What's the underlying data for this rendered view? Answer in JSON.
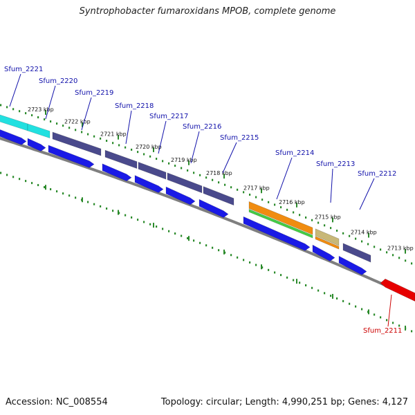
{
  "title": "Syntrophobacter fumaroxidans MPOB, complete genome",
  "footer": {
    "accession": "Accession: NC_008554",
    "summary": "Topology: circular; Length: 4,990,251 bp; Genes: 4,127"
  },
  "colors": {
    "backbone": "#7f7f7f",
    "cds_forward": "#1a1ae6",
    "cds_purple": "#4a4a8c",
    "cds_cyan": "#22e0e0",
    "cds_orange": "#f08c10",
    "cds_green": "#44cc44",
    "cds_tan": "#c8b878",
    "cds_reverse": "#e60000",
    "tick": "#2a8a2a",
    "label_forward": "#1010aa",
    "label_reverse": "#cc0000"
  },
  "scale": {
    "kbp_ticks": [
      "2723 kbp",
      "2722 kbp",
      "2721 kbp",
      "2720 kbp",
      "2719 kbp",
      "2718 kbp",
      "2717 kbp",
      "2716 kbp",
      "2715 kbp",
      "2714 kbp",
      "2713 kbp"
    ]
  },
  "genes": [
    {
      "name": "Sfum_2221",
      "strand": "+",
      "color": "cds_cyan"
    },
    {
      "name": "Sfum_2220",
      "strand": "+",
      "color": "cds_cyan"
    },
    {
      "name": "Sfum_2219",
      "strand": "+",
      "color": "cds_purple"
    },
    {
      "name": "Sfum_2218",
      "strand": "+",
      "color": "cds_purple"
    },
    {
      "name": "Sfum_2217",
      "strand": "+",
      "color": "cds_purple"
    },
    {
      "name": "Sfum_2216",
      "strand": "+",
      "color": "cds_purple"
    },
    {
      "name": "Sfum_2215",
      "strand": "+",
      "color": "cds_purple"
    },
    {
      "name": "Sfum_2214",
      "strand": "+",
      "color": "cds_orange"
    },
    {
      "name": "Sfum_2213",
      "strand": "+",
      "color": "cds_tan"
    },
    {
      "name": "Sfum_2212",
      "strand": "+",
      "color": "cds_purple"
    },
    {
      "name": "Sfum_2211",
      "strand": "-",
      "color": "cds_reverse"
    }
  ]
}
